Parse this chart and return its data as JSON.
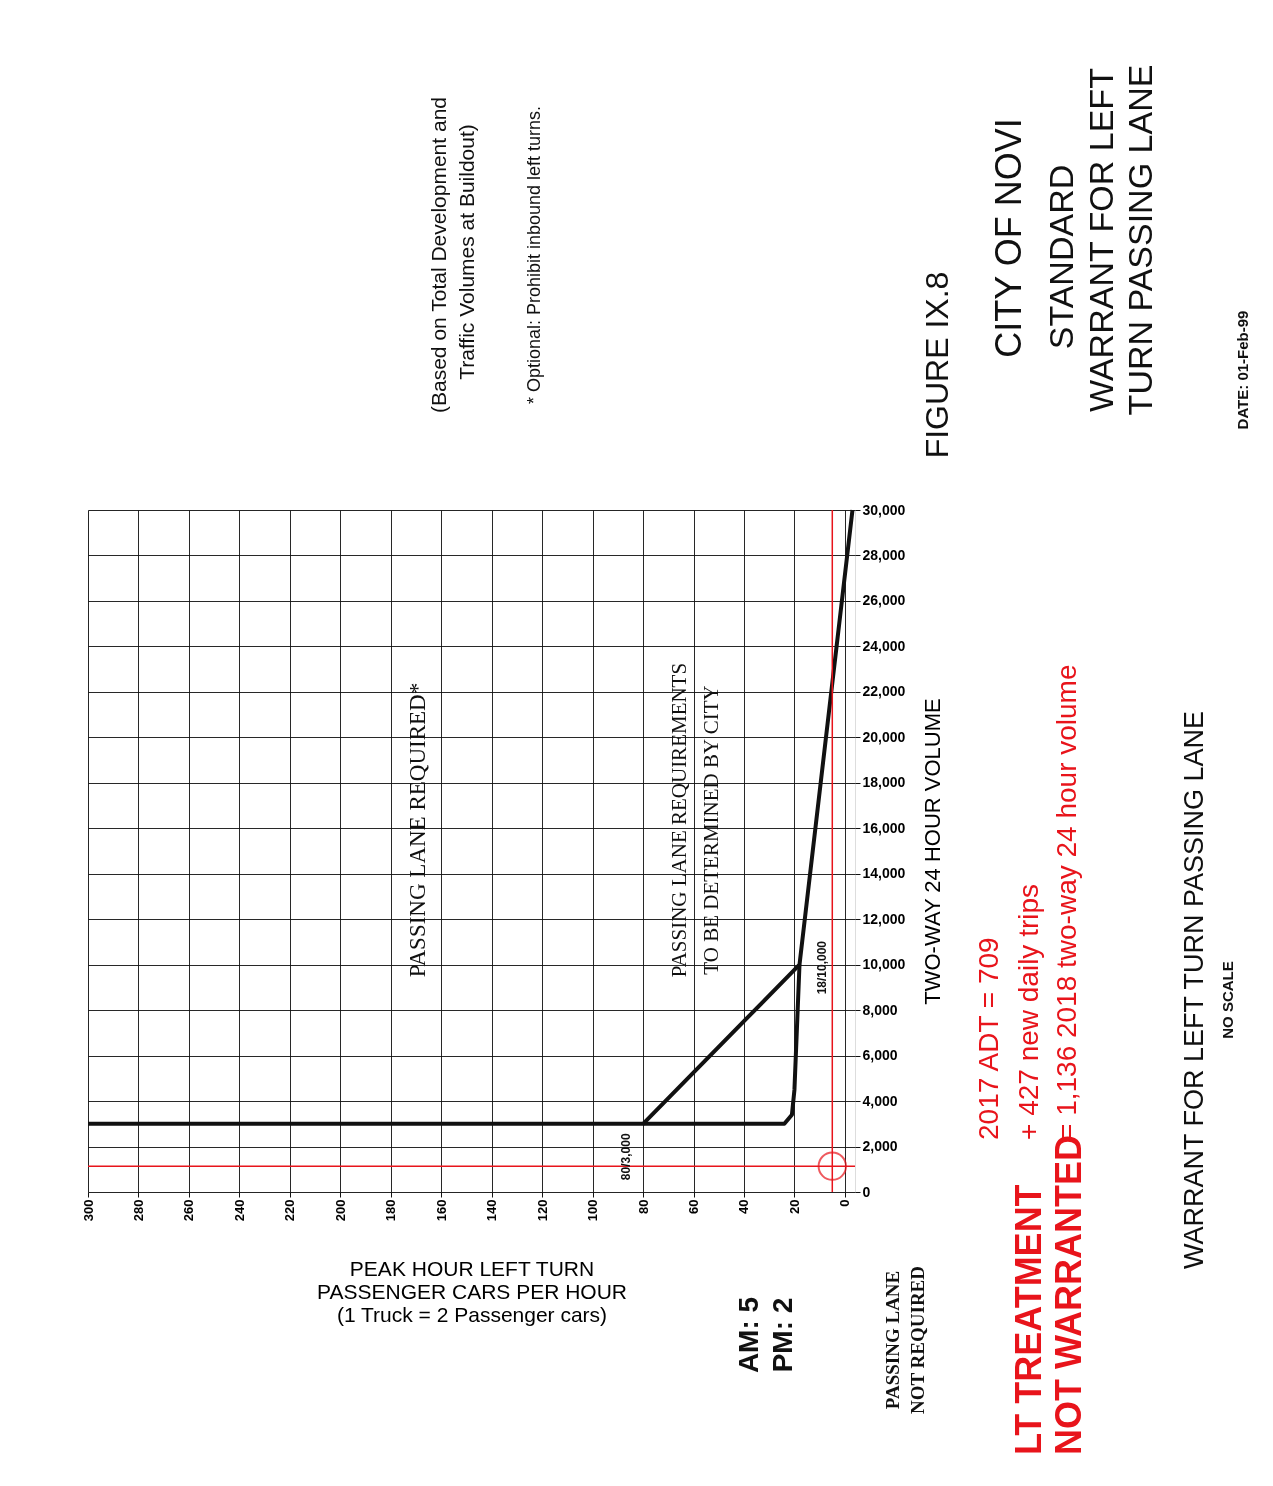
{
  "chart_data": {
    "type": "line",
    "title": "CITY OF NOVI",
    "subtitle": "STANDARD\nWARRANT FOR LEFT\nTURN PASSING LANE",
    "xlabel": "PEAK HOUR LEFT TURN\nPASSENGER CARS PER HOUR\n(1 Truck = 2 Passenger cars)",
    "ylabel": "TWO-WAY 24 HOUR VOLUME",
    "xlim": [
      300,
      -4
    ],
    "xticks": [
      0,
      20,
      40,
      60,
      80,
      100,
      120,
      140,
      160,
      180,
      200,
      220,
      240,
      260,
      280,
      300
    ],
    "ylim": [
      0,
      30000
    ],
    "yticks": [
      0,
      {
        "value": 2000,
        "label": "2,000"
      },
      {
        "value": 4000,
        "label": "4,000"
      },
      {
        "value": 6000,
        "label": "6,000"
      },
      {
        "value": 8000,
        "label": "8,000"
      },
      {
        "value": 10000,
        "label": "10,000"
      },
      {
        "value": 12000,
        "label": "12,000"
      },
      {
        "value": 14000,
        "label": "14,000"
      },
      {
        "value": 16000,
        "label": "16,000"
      },
      {
        "value": 18000,
        "label": "18,000"
      },
      {
        "value": 20000,
        "label": "20,000"
      },
      {
        "value": 22000,
        "label": "22,000"
      },
      {
        "value": 24000,
        "label": "24,000"
      },
      {
        "value": 26000,
        "label": "26,000"
      },
      {
        "value": 28000,
        "label": "28,000"
      },
      {
        "value": 30000,
        "label": "30,000"
      }
    ],
    "grid": true,
    "line_style": "solid",
    "series": [
      {
        "color": "#111111",
        "x": [
          300,
          80,
          18,
          -3
        ],
        "values": [
          3000,
          3000,
          10000,
          30000
        ]
      },
      {
        "color": "#111111",
        "x": [
          80,
          24,
          21,
          20,
          18
        ],
        "values": [
          3000,
          3000,
          3400,
          4500,
          10000
        ]
      },
      {
        "type": "scatter",
        "marker": "circle",
        "color": "#e8141b",
        "x": [
          5
        ],
        "values": [
          1136
        ]
      }
    ],
    "ref_lines": [
      {
        "axis": "x",
        "value": 5,
        "color": "#e8141b"
      },
      {
        "axis": "y",
        "value": 1136,
        "color": "#e8141b"
      }
    ],
    "annotations": [
      {
        "text": "80/3,000",
        "x": 80,
        "y": 3000
      },
      {
        "text": "18/10,000",
        "x": 18,
        "y": 10000
      },
      "PASSING LANE REQUIRED*",
      "PASSING LANE REQUIREMENTS",
      "TO BE DETERMINED BY CITY",
      "FIGURE IX.8",
      "DATE: 01-Feb-99",
      "(Based on Total Development and",
      "Traffic Volumes at Buildout)",
      "* Optional: Prohibit inbound left turns.",
      "WARRANT FOR LEFT TURN PASSING LANE",
      "NO SCALE",
      "AM: 5",
      "PM: 2",
      "PASSING LANE",
      "NOT REQUIRED",
      "2017 ADT = 709",
      "+ 427 new daily trips",
      "= 1,136 2018 two-way 24 hour volume",
      "LT TREATMENT",
      "NOT WARRANTED"
    ]
  }
}
